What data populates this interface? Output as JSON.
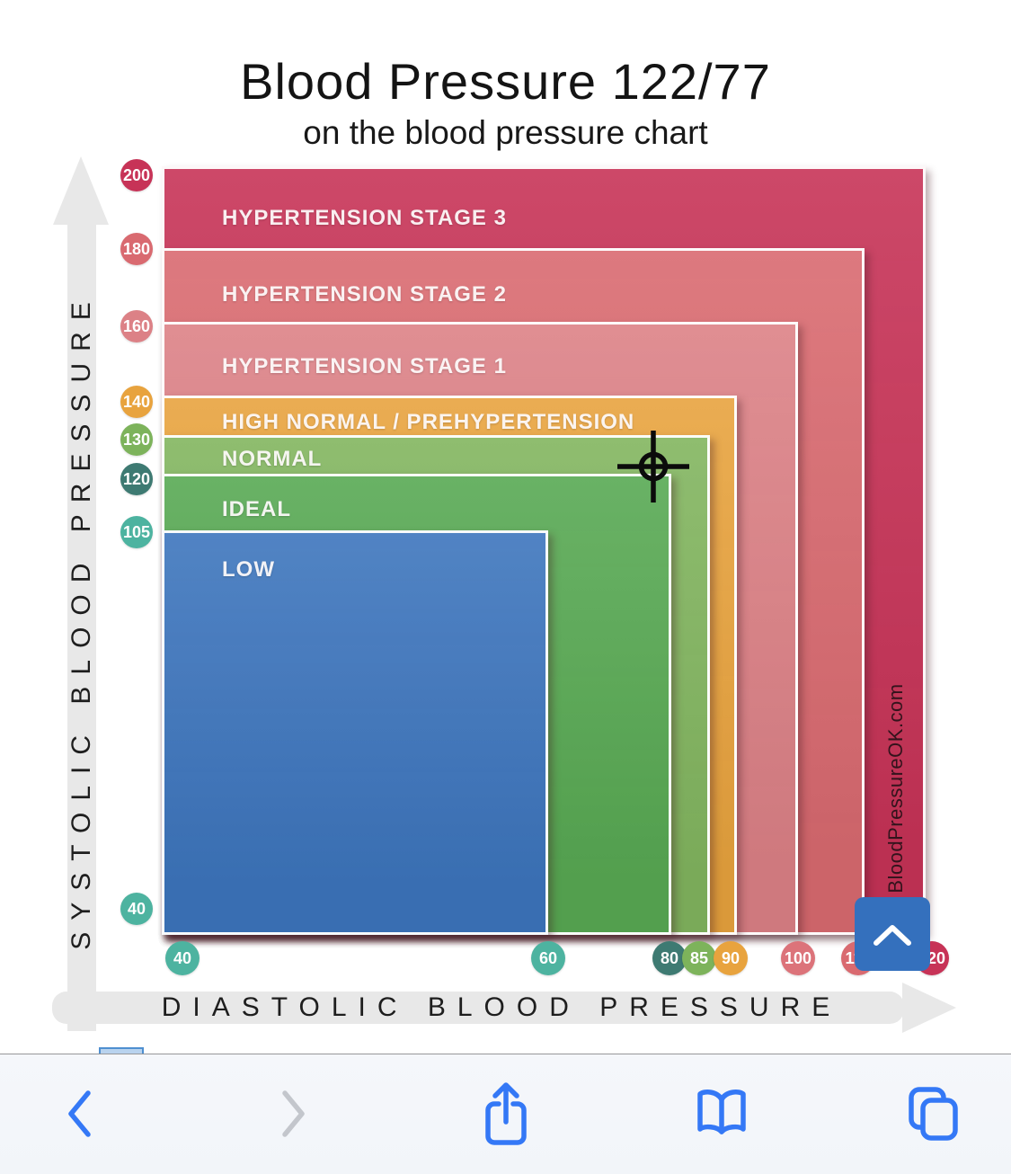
{
  "colors": {
    "ios_blue": "#3478f6",
    "forward_gray": "#c3c6cc",
    "scroll_button_blue": "#3470bd",
    "toolbar_bg": "#f2f5f9",
    "axis_arrow_gray": "#e8e8e8",
    "band_border": "#ffffff"
  },
  "chart_data": {
    "type": "area",
    "title": "Blood Pressure 122/77",
    "subtitle": "on the blood pressure chart",
    "xlabel": "DIASTOLIC BLOOD PRESSURE",
    "ylabel": "SYSTOLIC BLOOD PRESSURE",
    "watermark": "BloodPressureOK.com",
    "marker": {
      "reading": "122/77",
      "systolic": 122,
      "diastolic": 77
    },
    "legend_position": "labels-inside-bands",
    "grid": false,
    "bands": [
      {
        "label": "HYPERTENSION STAGE 3",
        "systolic_range": [
          180,
          200
        ],
        "diastolic_range": [
          110,
          120
        ],
        "color": "#c73357"
      },
      {
        "label": "HYPERTENSION STAGE 2",
        "systolic_range": [
          160,
          180
        ],
        "diastolic_range": [
          100,
          110
        ],
        "color": "#d96a70"
      },
      {
        "label": "HYPERTENSION STAGE 1",
        "systolic_range": [
          140,
          160
        ],
        "diastolic_range": [
          90,
          100
        ],
        "color": "#dc8186"
      },
      {
        "label": "HIGH NORMAL / PREHYPERTENSION",
        "systolic_range": [
          130,
          140
        ],
        "diastolic_range": [
          85,
          90
        ],
        "color": "#e8a33e"
      },
      {
        "label": "NORMAL",
        "systolic_range": [
          120,
          130
        ],
        "diastolic_range": [
          80,
          85
        ],
        "color": "#82b55f"
      },
      {
        "label": "IDEAL",
        "systolic_range": [
          105,
          120
        ],
        "diastolic_range": [
          60,
          80
        ],
        "color": "#58a953"
      },
      {
        "label": "LOW",
        "systolic_range": [
          40,
          105
        ],
        "diastolic_range": [
          40,
          60
        ],
        "color": "#3d75bd"
      }
    ],
    "y_ticks": [
      {
        "value": "200",
        "color": "#c73357"
      },
      {
        "value": "180",
        "color": "#d96a70"
      },
      {
        "value": "160",
        "color": "#dc8186"
      },
      {
        "value": "140",
        "color": "#e8a33e"
      },
      {
        "value": "130",
        "color": "#7db35b"
      },
      {
        "value": "120",
        "color": "#3e7a72"
      },
      {
        "value": "105",
        "color": "#4db3a0"
      },
      {
        "value": "40",
        "color": "#4db3a0"
      }
    ],
    "x_ticks": [
      {
        "value": "40",
        "color": "#4db3a0"
      },
      {
        "value": "60",
        "color": "#4db3a0"
      },
      {
        "value": "80",
        "color": "#3e7a72"
      },
      {
        "value": "85",
        "color": "#7db35b"
      },
      {
        "value": "90",
        "color": "#e8a33e"
      },
      {
        "value": "100",
        "color": "#dc737a"
      },
      {
        "value": "110",
        "color": "#d96a70"
      },
      {
        "value": "120",
        "color": "#c73357"
      }
    ],
    "xlim": [
      40,
      120
    ],
    "ylim": [
      40,
      200
    ]
  },
  "scroll_top_button": {
    "icon": "chevron-up-icon"
  },
  "toolbar": {
    "buttons": [
      {
        "name": "back",
        "icon": "chevron-back-icon",
        "enabled": true
      },
      {
        "name": "forward",
        "icon": "chevron-forward-icon",
        "enabled": false
      },
      {
        "name": "share",
        "icon": "share-icon",
        "enabled": true
      },
      {
        "name": "bookmarks",
        "icon": "open-book-icon",
        "enabled": true
      },
      {
        "name": "tabs",
        "icon": "tabs-icon",
        "enabled": true
      }
    ]
  }
}
